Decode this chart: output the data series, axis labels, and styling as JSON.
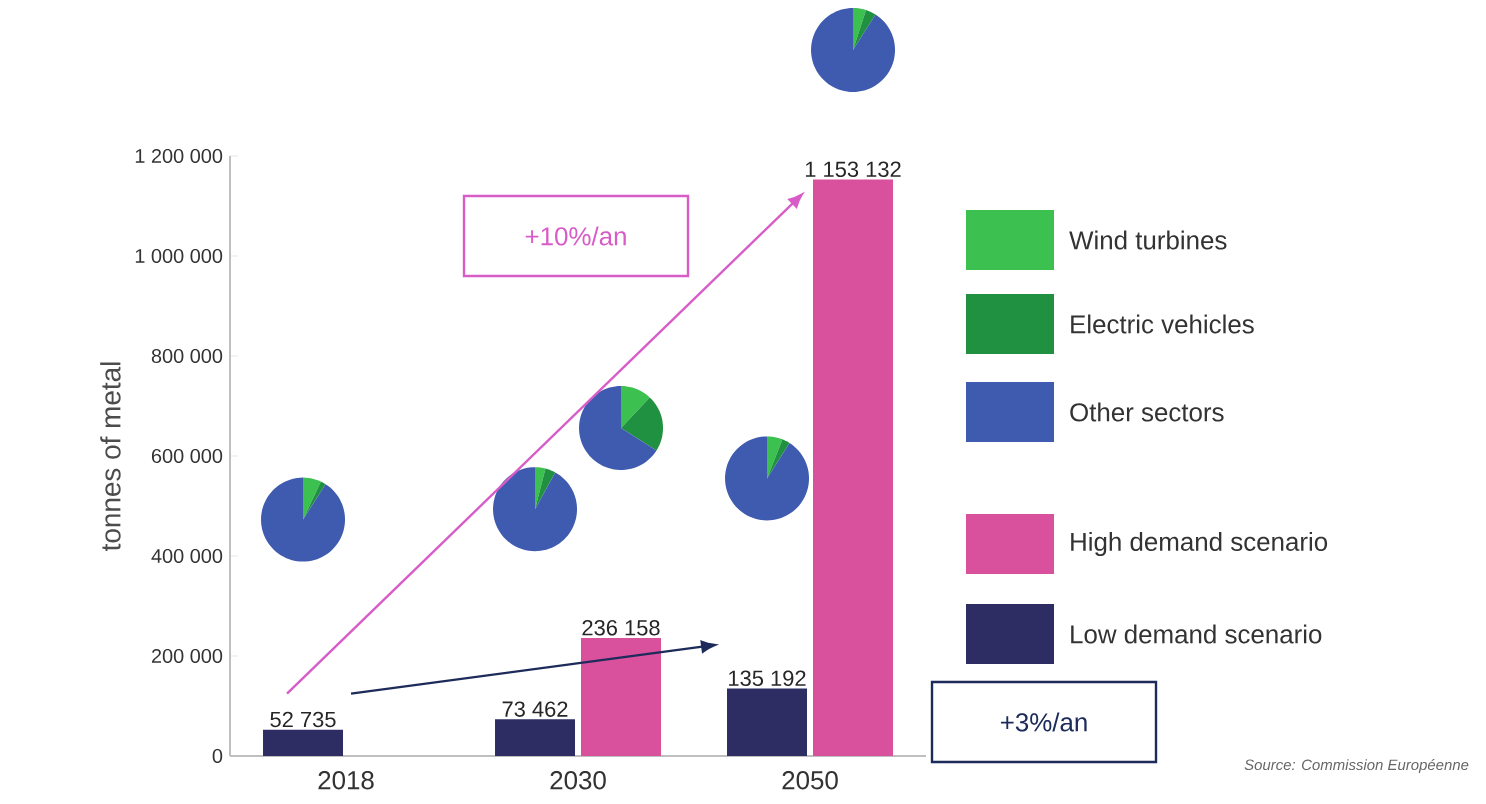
{
  "chart_data": [
    {
      "type": "bar",
      "categories": [
        "2018",
        "2030",
        "2050"
      ],
      "ylabel": "tonnes of metal",
      "ylim": [
        0,
        1200000
      ],
      "yticks": [
        {
          "value": 0,
          "label": "0"
        },
        {
          "value": 200000,
          "label": "200 000"
        },
        {
          "value": 400000,
          "label": "400 000"
        },
        {
          "value": 600000,
          "label": "600 000"
        },
        {
          "value": 800000,
          "label": "800 000"
        },
        {
          "value": 1000000,
          "label": "1 000 000"
        },
        {
          "value": 1200000,
          "label": "1 200 000"
        }
      ],
      "series": [
        {
          "name": "Low demand scenario",
          "color": "#2e2d63",
          "values": [
            52735,
            73462,
            135192
          ],
          "value_labels": [
            "52 735",
            "73 462",
            "135 192"
          ]
        },
        {
          "name": "High demand scenario",
          "color": "#d9509c",
          "values": [
            null,
            236158,
            1153132
          ],
          "value_labels": [
            null,
            "236 158",
            "1 153 132"
          ]
        }
      ],
      "legend": "right",
      "annotations": [
        "+10%/an",
        "+3%/an",
        "Source: Commission Européenne"
      ]
    },
    {
      "type": "pie",
      "categories": [
        "Wind turbines",
        "Electric vehicles",
        "Other sectors"
      ],
      "values": [
        7,
        2,
        91
      ],
      "colors": [
        "#3cc04f",
        "#1f9140",
        "#3f5bb0"
      ],
      "legend": "right"
    },
    {
      "type": "pie",
      "categories": [
        null,
        null,
        null
      ],
      "values": [
        4,
        4,
        92
      ],
      "colors": [
        "#3cc04f",
        "#1f9140",
        "#3f5bb0"
      ]
    },
    {
      "type": "pie",
      "categories": [
        null,
        null,
        null
      ],
      "values": [
        12,
        22,
        66
      ],
      "colors": [
        "#3cc04f",
        "#1f9140",
        "#3f5bb0"
      ]
    },
    {
      "type": "pie",
      "categories": [
        null,
        null,
        null
      ],
      "values": [
        6,
        3,
        91
      ],
      "colors": [
        "#3cc04f",
        "#1f9140",
        "#3f5bb0"
      ]
    },
    {
      "type": "pie",
      "categories": [
        null,
        null,
        null
      ],
      "values": [
        5,
        4,
        91
      ],
      "colors": [
        "#3cc04f",
        "#1f9140",
        "#3f5bb0"
      ]
    }
  ]
}
